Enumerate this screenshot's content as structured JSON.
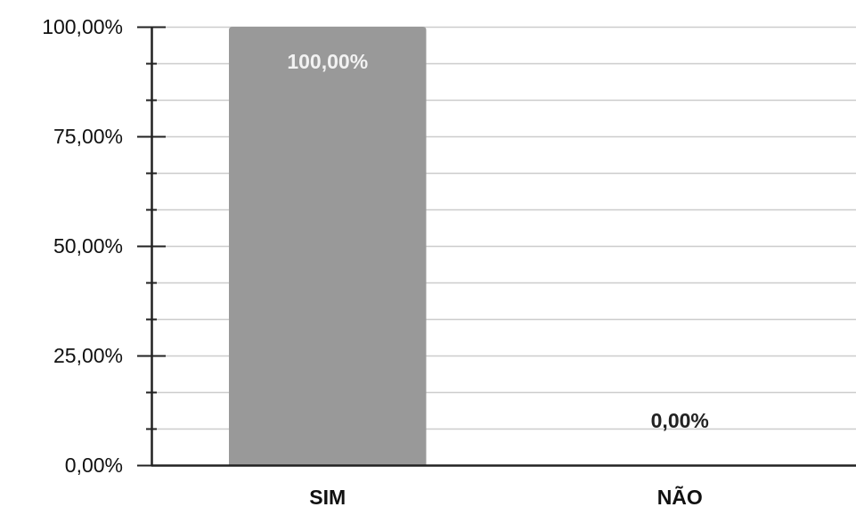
{
  "chart_data": {
    "type": "bar",
    "categories": [
      "SIM",
      "NÃO"
    ],
    "values": [
      100,
      0
    ],
    "data_labels": [
      "100,00%",
      "0,00%"
    ],
    "ylim": [
      0,
      100
    ],
    "yticks": [
      0,
      25,
      50,
      75,
      100
    ],
    "ytick_labels": [
      "0,00%",
      "25,00%",
      "50,00%",
      "75,00%",
      "100,00%"
    ],
    "minor_ticks_between_major": 2,
    "grid": true,
    "legend": "none",
    "colors": {
      "bar": "#999999",
      "grid": "#cccccc",
      "axis": "#222222"
    }
  }
}
